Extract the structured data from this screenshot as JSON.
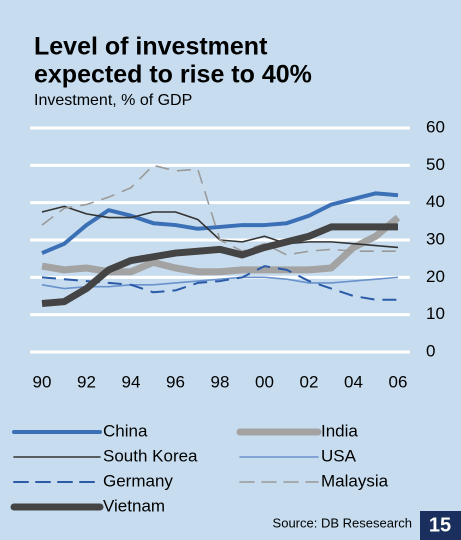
{
  "chart_data": {
    "type": "line",
    "title": [
      "Level of investment",
      "expected to rise to 40%"
    ],
    "subtitle": "Investment, % of GDP",
    "source": "Source: DB Resesearch",
    "page_number": "15",
    "categories": [
      "90",
      null,
      "92",
      null,
      "94",
      null,
      "96",
      null,
      "98",
      null,
      "00",
      null,
      "02",
      null,
      "04",
      null,
      "06"
    ],
    "ylim": [
      0,
      60
    ],
    "yticks": [
      0,
      10,
      20,
      30,
      40,
      50,
      60
    ],
    "grid": true,
    "series": [
      {
        "name": "China",
        "color": "#3b6fb6",
        "style": "thick",
        "values": [
          26.5,
          29,
          34,
          38,
          36.5,
          34.5,
          34,
          33,
          33.5,
          34,
          34,
          34.5,
          36.5,
          39.5,
          41,
          42.5,
          42
        ]
      },
      {
        "name": "India",
        "color": "#a3a3a3",
        "style": "heavy",
        "values": [
          23,
          22,
          22.5,
          21.5,
          21.5,
          24,
          22.5,
          21.5,
          21.5,
          22,
          22,
          22,
          22,
          22.5,
          28,
          31,
          36
        ]
      },
      {
        "name": "South Korea",
        "color": "#333333",
        "style": "thin",
        "values": [
          37.5,
          39,
          37,
          36,
          36,
          37.5,
          37.5,
          35.5,
          30,
          29.5,
          31,
          29,
          29.5,
          29.5,
          29,
          28.5,
          28
        ]
      },
      {
        "name": "USA",
        "color": "#6a92cc",
        "style": "thin",
        "values": [
          18,
          17,
          17.5,
          17.5,
          18,
          18,
          18.5,
          19,
          19.5,
          20,
          20,
          19.5,
          18.5,
          18.5,
          19,
          19.5,
          20
        ]
      },
      {
        "name": "Germany",
        "color": "#2a5aa8",
        "style": "dashed",
        "values": [
          20,
          19.5,
          19,
          18.5,
          18,
          16,
          16.5,
          18.5,
          19,
          20,
          23,
          22,
          19,
          17,
          15,
          14,
          14
        ]
      },
      {
        "name": "Malaysia",
        "color": "#9a9a9a",
        "style": "dashed-thin",
        "values": [
          34,
          38.5,
          39.5,
          41.5,
          44,
          50,
          48.5,
          49,
          30,
          27,
          29,
          26,
          27,
          27.5,
          27,
          27,
          27
        ]
      },
      {
        "name": "Vietnam",
        "color": "#444444",
        "style": "heavy",
        "values": [
          13,
          13.5,
          17,
          22,
          24.5,
          25.5,
          26.5,
          27,
          27.5,
          26,
          28,
          29.5,
          31,
          33.5,
          33.5,
          33.5,
          33.5
        ]
      }
    ]
  }
}
